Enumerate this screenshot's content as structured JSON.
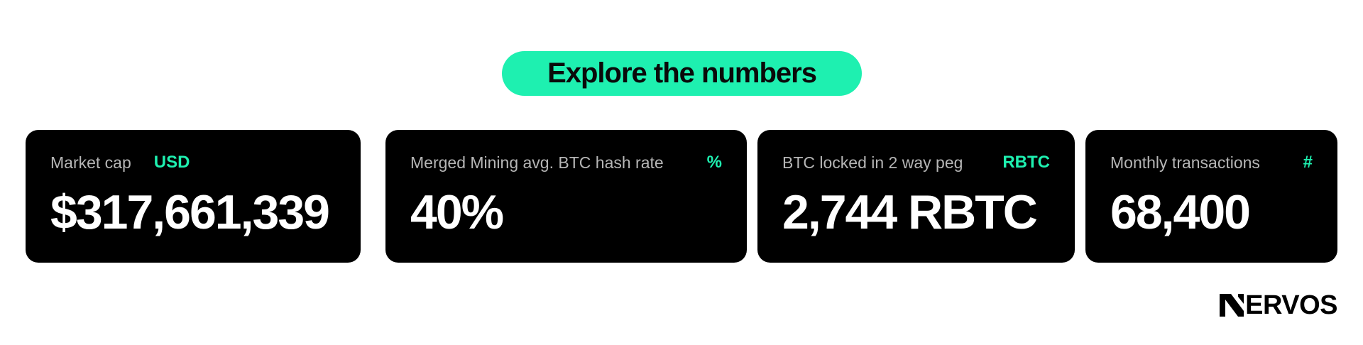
{
  "header": {
    "title": "Explore the numbers"
  },
  "stats": [
    {
      "label": "Market cap",
      "unit": "USD",
      "value": "$317,661,339"
    },
    {
      "label": "Merged Mining avg. BTC hash rate",
      "unit": "%",
      "value": "40%"
    },
    {
      "label": "BTC locked in 2 way peg",
      "unit": "RBTC",
      "value": "2,744 RBTC"
    },
    {
      "label": "Monthly transactions",
      "unit": "#",
      "value": "68,400"
    }
  ],
  "brand": {
    "name": "ERVOS",
    "logo_icon": "nervos-n-logo-icon"
  },
  "colors": {
    "accent": "#1ef0b0",
    "card_bg": "#000000",
    "label": "#b6b6b6",
    "value": "#ffffff"
  }
}
